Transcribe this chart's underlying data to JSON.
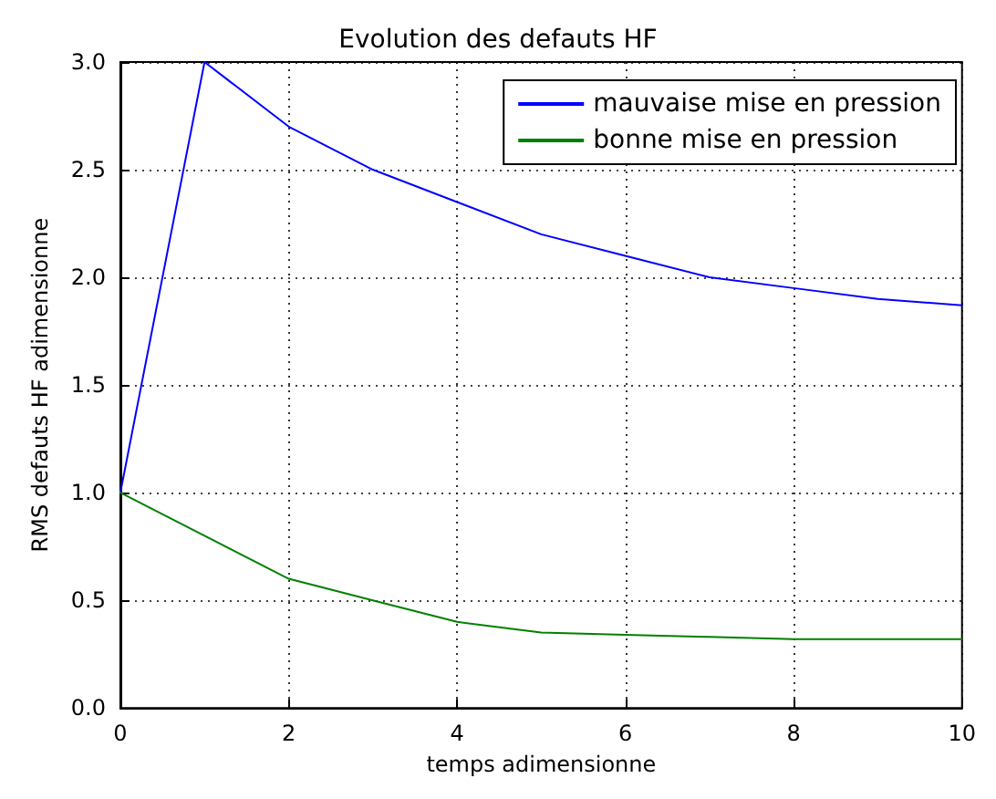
{
  "chart_data": {
    "type": "line",
    "title": "Evolution des defauts HF",
    "xlabel": "temps adimensionne",
    "ylabel": "RMS defauts HF adimensionne",
    "x": [
      0,
      1,
      2,
      3,
      4,
      5,
      6,
      7,
      8,
      9,
      10
    ],
    "series": [
      {
        "name": "mauvaise mise en pression",
        "color": "#0000ff",
        "values": [
          1.0,
          3.0,
          2.7,
          2.5,
          2.35,
          2.2,
          2.1,
          2.0,
          1.95,
          1.9,
          1.87
        ]
      },
      {
        "name": "bonne mise en pression",
        "color": "#008000",
        "values": [
          1.0,
          0.8,
          0.6,
          0.5,
          0.4,
          0.35,
          0.34,
          0.33,
          0.32,
          0.32,
          0.32
        ]
      }
    ],
    "xlim": [
      0,
      10
    ],
    "xticks": [
      0,
      2,
      4,
      6,
      8,
      10
    ],
    "ylim": [
      0,
      3
    ],
    "yticks": [
      {
        "value": 0,
        "label": "0.0"
      },
      {
        "value": 0.5,
        "label": "0.5"
      },
      {
        "value": 1,
        "label": "1.0"
      },
      {
        "value": 1.5,
        "label": "1.5"
      },
      {
        "value": 2,
        "label": "2.0"
      },
      {
        "value": 2.5,
        "label": "2.5"
      },
      {
        "value": 3,
        "label": "3.0"
      }
    ],
    "grid": true,
    "legend": "top right",
    "marker": "none",
    "line_style": "solid"
  }
}
